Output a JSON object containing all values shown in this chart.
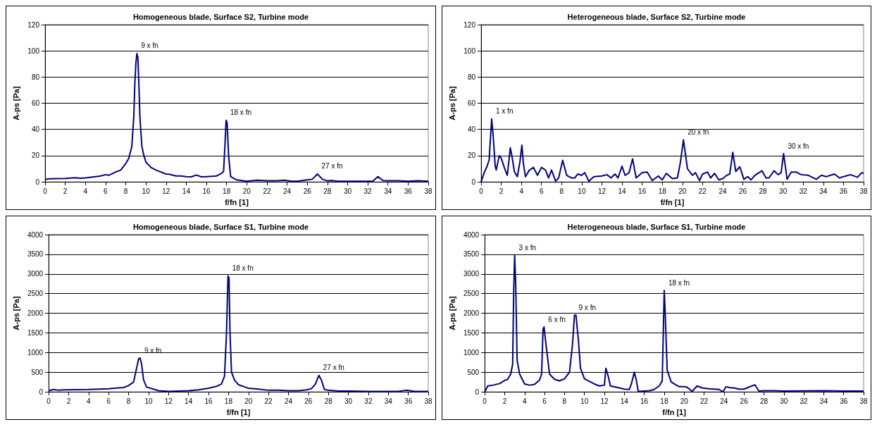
{
  "chart_data": [
    {
      "type": "line",
      "title": "Homogeneous blade, Surface S2, Turbine mode",
      "xlabel": "f/fn [1]",
      "ylabel": "A-ps [Pa]",
      "xlim": [
        0,
        38
      ],
      "xticks": [
        0,
        2,
        4,
        6,
        8,
        10,
        12,
        14,
        16,
        18,
        20,
        22,
        24,
        26,
        28,
        30,
        32,
        34,
        36,
        38
      ],
      "ylim": [
        0,
        120
      ],
      "yticks": [
        0,
        20,
        40,
        60,
        80,
        100,
        120
      ],
      "grid": "y",
      "marker": "none",
      "line_style": "solid",
      "annotations": [
        {
          "text": "9 x fn",
          "x": 9.1,
          "y": 98
        },
        {
          "text": "18 x fn",
          "x": 17.95,
          "y": 47
        },
        {
          "text": "27 x fn",
          "x": 27,
          "y": 6
        }
      ],
      "series": [
        {
          "color": "#000080",
          "x": [
            0,
            0.5,
            1,
            2,
            3,
            3.5,
            4,
            5,
            5.5,
            6,
            6.3,
            7,
            7.5,
            8,
            8.3,
            8.6,
            8.8,
            8.9,
            9,
            9.1,
            9.2,
            9.3,
            9.4,
            9.6,
            9.8,
            10,
            10.5,
            11,
            12,
            12.3,
            13,
            13.5,
            14,
            14.5,
            15,
            15.5,
            16,
            17,
            17.5,
            17.7,
            17.85,
            17.95,
            18.05,
            18.2,
            18.4,
            19,
            19.5,
            20,
            21,
            22,
            23,
            23.7,
            24.5,
            25,
            26,
            26.5,
            27,
            27.5,
            28,
            28.5,
            29,
            30,
            31,
            32,
            32.5,
            33,
            33.5,
            34,
            35,
            36,
            37,
            38
          ],
          "values": [
            2,
            2.3,
            2.5,
            2.6,
            3.2,
            2.8,
            3,
            4,
            4.5,
            5.5,
            5,
            7.5,
            9,
            14,
            18,
            27,
            50,
            75,
            90,
            98,
            95,
            75,
            50,
            27,
            20,
            15,
            11,
            9,
            6,
            5.8,
            4.5,
            4.5,
            4,
            3.8,
            5.2,
            3.8,
            4,
            4.5,
            6.5,
            8,
            30,
            47,
            45,
            20,
            4,
            1.5,
            1,
            0.5,
            1.2,
            0.8,
            0.8,
            1.3,
            0.5,
            0.5,
            1.5,
            2,
            6,
            2,
            0.8,
            1,
            0.5,
            0.5,
            0.5,
            0.5,
            0.5,
            4,
            1,
            0.8,
            0.8,
            0.5,
            0.8,
            0.5
          ]
        }
      ]
    },
    {
      "type": "line",
      "title": "Heterogeneous blade, Surface S2, Turbine mode",
      "xlabel": "f/fn [1]",
      "ylabel": "A-ps [Pa]",
      "xlim": [
        0,
        38
      ],
      "xticks": [
        0,
        2,
        4,
        6,
        8,
        10,
        12,
        14,
        16,
        18,
        20,
        22,
        24,
        26,
        28,
        30,
        32,
        34,
        36,
        38
      ],
      "ylim": [
        0,
        120
      ],
      "yticks": [
        0,
        20,
        40,
        60,
        80,
        100,
        120
      ],
      "grid": "y",
      "marker": "none",
      "line_style": "solid",
      "annotations": [
        {
          "text": "1 x fn",
          "x": 1.05,
          "y": 48
        },
        {
          "text": "20 x fn",
          "x": 20.1,
          "y": 32
        },
        {
          "text": "30 x fn",
          "x": 30.05,
          "y": 21.5
        }
      ],
      "series": [
        {
          "color": "#000080",
          "x": [
            0,
            0.3,
            0.6,
            0.8,
            0.9,
            1.05,
            1.2,
            1.4,
            1.5,
            1.8,
            2,
            2.3,
            2.6,
            2.9,
            3.1,
            3.3,
            3.6,
            3.85,
            4.05,
            4.2,
            4.4,
            4.8,
            5.2,
            5.6,
            6,
            6.4,
            6.7,
            7,
            7.4,
            7.7,
            8.1,
            8.5,
            9,
            9.3,
            9.6,
            10,
            10.3,
            10.7,
            11.2,
            12,
            12.5,
            12.9,
            13.3,
            13.6,
            14,
            14.3,
            14.7,
            15.05,
            15.4,
            16,
            16.5,
            17,
            17.6,
            18,
            18.4,
            19,
            19.5,
            19.8,
            20.1,
            20.5,
            21,
            21.3,
            21.7,
            22,
            22.5,
            22.8,
            23.2,
            23.6,
            24,
            24.4,
            24.7,
            25,
            25.3,
            25.7,
            26.1,
            26.5,
            26.8,
            27.2,
            27.9,
            28.3,
            28.6,
            29.1,
            29.5,
            29.8,
            30.05,
            30.4,
            30.8,
            31.3,
            31.8,
            32.5,
            33.3,
            33.8,
            34.3,
            35.1,
            35.6,
            36,
            36.7,
            37.4,
            37.8,
            38
          ],
          "values": [
            0,
            7,
            12,
            17,
            30,
            48,
            35,
            12,
            9,
            20,
            18,
            11,
            5,
            26,
            18,
            8,
            4,
            15,
            28,
            14,
            4,
            9,
            11,
            5,
            11,
            9,
            3,
            9,
            0.5,
            3,
            16.5,
            5,
            3,
            3,
            6,
            5,
            7,
            0.5,
            4,
            4.5,
            5.5,
            3,
            6,
            3,
            12,
            5,
            7,
            17.5,
            3,
            7,
            7.5,
            1,
            4.5,
            1.5,
            6.5,
            2.5,
            3,
            15,
            32,
            10,
            5,
            7,
            1,
            6,
            7.5,
            3,
            6.5,
            1.5,
            2.5,
            5,
            6,
            22.5,
            8,
            11.5,
            2,
            4,
            1.5,
            5,
            8.5,
            3,
            3,
            8.5,
            5.5,
            7,
            21.5,
            2,
            7.5,
            7.5,
            5.5,
            5,
            2,
            5,
            4,
            6,
            3,
            4,
            5.5,
            3.5,
            7,
            6.5
          ]
        }
      ]
    },
    {
      "type": "line",
      "title": "Homogeneous blade, Surface S1, Turbine mode",
      "xlabel": "f/fn [1]",
      "ylabel": "A-ps [Pa]",
      "xlim": [
        0,
        38
      ],
      "xticks": [
        0,
        2,
        4,
        6,
        8,
        10,
        12,
        14,
        16,
        18,
        20,
        22,
        24,
        26,
        28,
        30,
        32,
        34,
        36,
        38
      ],
      "ylim": [
        0,
        4000
      ],
      "yticks": [
        0,
        500,
        1000,
        1500,
        2000,
        2500,
        3000,
        3500,
        4000
      ],
      "grid": "y",
      "marker": "none",
      "line_style": "solid",
      "annotations": [
        {
          "text": "9 x fn",
          "x": 9.15,
          "y": 860
        },
        {
          "text": "18 x fn",
          "x": 17.95,
          "y": 2950
        },
        {
          "text": "27 x fn",
          "x": 27.05,
          "y": 420
        }
      ],
      "series": [
        {
          "color": "#000080",
          "x": [
            0,
            0.5,
            1,
            1.5,
            4,
            6,
            7,
            7.5,
            8,
            8.5,
            8.8,
            9,
            9.15,
            9.3,
            9.5,
            9.8,
            10.5,
            11,
            12,
            13,
            14,
            15,
            16,
            16.8,
            17.3,
            17.6,
            17.8,
            17.95,
            18.05,
            18.15,
            18.3,
            18.6,
            19,
            20,
            21,
            22,
            23,
            24,
            25,
            25.8,
            26.3,
            26.7,
            27.05,
            27.3,
            27.6,
            28,
            29,
            30,
            31,
            32,
            35,
            35.8,
            36.2,
            36.6,
            38
          ],
          "values": [
            30,
            60,
            40,
            50,
            60,
            80,
            100,
            110,
            160,
            250,
            600,
            840,
            860,
            700,
            300,
            120,
            70,
            30,
            10,
            20,
            30,
            50,
            90,
            140,
            200,
            400,
            1500,
            2950,
            2900,
            1500,
            500,
            300,
            180,
            90,
            70,
            40,
            40,
            30,
            30,
            50,
            80,
            200,
            420,
            300,
            60,
            40,
            20,
            20,
            15,
            10,
            10,
            40,
            30,
            10,
            10
          ]
        }
      ]
    },
    {
      "type": "line",
      "title": "Heterogeneous blade, Surface S1, Turbine mode",
      "xlabel": "f/fn [1]",
      "ylabel": "A-ps [Pa]",
      "xlim": [
        0,
        38
      ],
      "xticks": [
        0,
        2,
        4,
        6,
        8,
        10,
        12,
        14,
        16,
        18,
        20,
        22,
        24,
        26,
        28,
        30,
        32,
        34,
        36,
        38
      ],
      "ylim": [
        0,
        4000
      ],
      "yticks": [
        0,
        500,
        1000,
        1500,
        2000,
        2500,
        3000,
        3500,
        4000
      ],
      "grid": "y",
      "marker": "none",
      "line_style": "solid",
      "annotations": [
        {
          "text": "3 x fn",
          "x": 3,
          "y": 3470
        },
        {
          "text": "6 x fn",
          "x": 5.95,
          "y": 1650
        },
        {
          "text": "9 x fn",
          "x": 9,
          "y": 1950
        },
        {
          "text": "18 x fn",
          "x": 18,
          "y": 2580
        }
      ],
      "series": [
        {
          "color": "#000080",
          "x": [
            0,
            0.3,
            0.8,
            1.5,
            2,
            2.3,
            2.6,
            2.8,
            2.9,
            3,
            3.1,
            3.25,
            3.5,
            4,
            4.5,
            5,
            5.5,
            5.7,
            5.85,
            5.95,
            6.1,
            6.5,
            7,
            7.5,
            8,
            8.5,
            8.8,
            9,
            9.15,
            9.4,
            9.6,
            10,
            11,
            11.5,
            12,
            12.15,
            12.4,
            12.6,
            13.5,
            14,
            14.5,
            14.7,
            15,
            15.2,
            15.4,
            16,
            16.5,
            17,
            17.5,
            17.8,
            17.9,
            18,
            18.1,
            18.3,
            18.7,
            19.5,
            20,
            20.3,
            20.8,
            21.3,
            21.8,
            22.5,
            23.5,
            23.9,
            24.2,
            24.7,
            25,
            25.5,
            26,
            26.7,
            27.1,
            27.5,
            28,
            29,
            30,
            34,
            36,
            38
          ],
          "values": [
            0,
            150,
            170,
            210,
            290,
            320,
            450,
            700,
            2500,
            3470,
            2800,
            800,
            450,
            200,
            170,
            190,
            300,
            450,
            1600,
            1650,
            1300,
            450,
            320,
            280,
            330,
            500,
            1200,
            1950,
            1950,
            1300,
            600,
            330,
            200,
            150,
            170,
            600,
            380,
            150,
            100,
            70,
            60,
            200,
            500,
            300,
            10,
            20,
            30,
            60,
            150,
            280,
            1400,
            2580,
            2000,
            550,
            250,
            130,
            130,
            120,
            10,
            150,
            100,
            80,
            60,
            0,
            130,
            100,
            100,
            70,
            70,
            140,
            180,
            20,
            30,
            30,
            20,
            30,
            20,
            20
          ]
        }
      ]
    }
  ]
}
